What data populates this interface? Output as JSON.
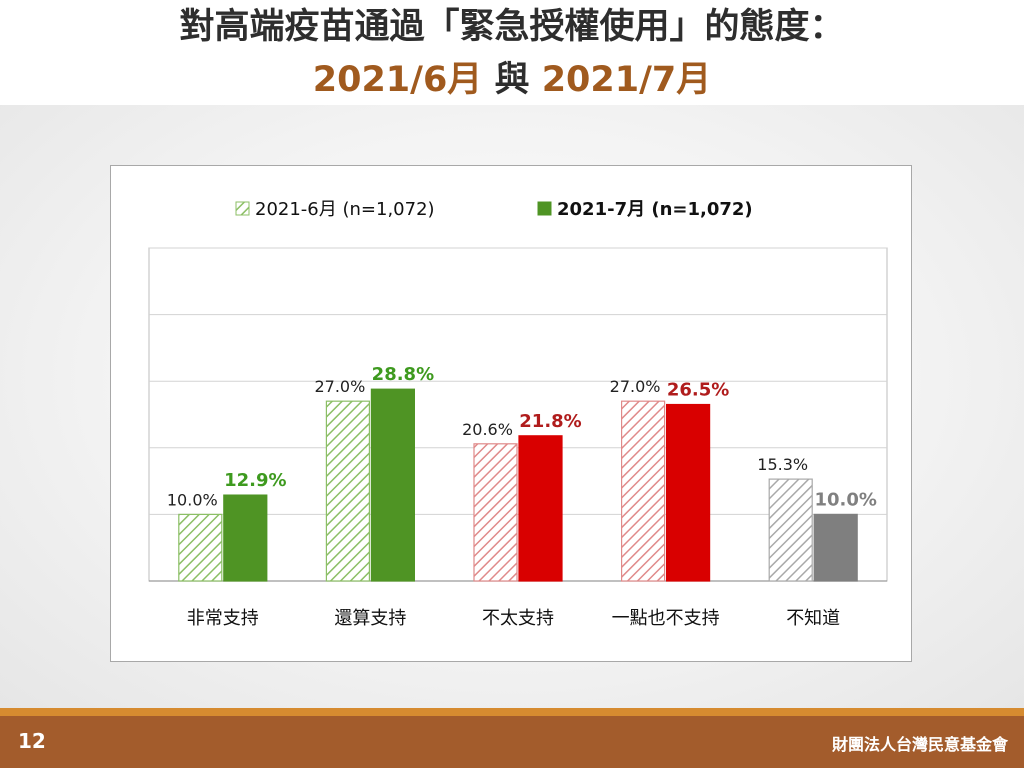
{
  "slide": {
    "title": "對高端疫苗通過「緊急授權使用」的態度：",
    "subtitle_part1": "2021/6月",
    "subtitle_mid": " 與 ",
    "subtitle_part2": "2021/7月",
    "page_number": "12",
    "organization": "財團法人台灣民意基金會"
  },
  "colors": {
    "title": "#2e2e2e",
    "accent": "#a05a1e",
    "support_solid": "#4f9424",
    "support_hatch": "#8cbf66",
    "oppose_solid": "#d90000",
    "oppose_hatch": "#e08a8a",
    "unknown_solid": "#7f7f7f",
    "unknown_hatch": "#a9a9a9",
    "support_label": "#3e9a1f",
    "oppose_label": "#b01c1c",
    "unknown_label": "#808080",
    "footer_bar": "#a35c2c",
    "footer_line": "#d68b30"
  },
  "chart_data": {
    "type": "bar",
    "categories": [
      "非常支持",
      "還算支持",
      "不太支持",
      "一點也不支持",
      "不知道"
    ],
    "series": [
      {
        "name": "2021-6月 (n=1,072)",
        "values": [
          10.0,
          27.0,
          20.6,
          27.0,
          15.3
        ],
        "labels": [
          "10.0%",
          "27.0%",
          "20.6%",
          "27.0%",
          "15.3%"
        ],
        "style": "hatched"
      },
      {
        "name": "2021-7月 (n=1,072)",
        "values": [
          12.9,
          28.8,
          21.8,
          26.5,
          10.0
        ],
        "labels": [
          "12.9%",
          "28.8%",
          "21.8%",
          "26.5%",
          "10.0%"
        ],
        "style": "solid"
      }
    ],
    "category_color_groups": [
      "support",
      "support",
      "oppose",
      "oppose",
      "unknown"
    ],
    "ylim": [
      0,
      50
    ],
    "gridlines": [
      10,
      20,
      30,
      40,
      50
    ],
    "grid": true,
    "legend_position": "top"
  }
}
